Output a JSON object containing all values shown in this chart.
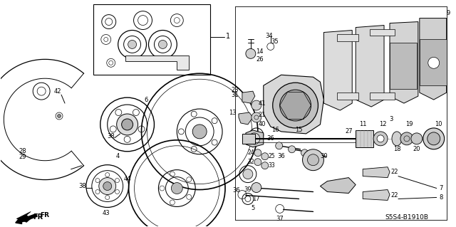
{
  "background_color": "#ffffff",
  "image_code": "S5S4-B1910B",
  "fig_width": 6.4,
  "fig_height": 3.19,
  "dpi": 100
}
